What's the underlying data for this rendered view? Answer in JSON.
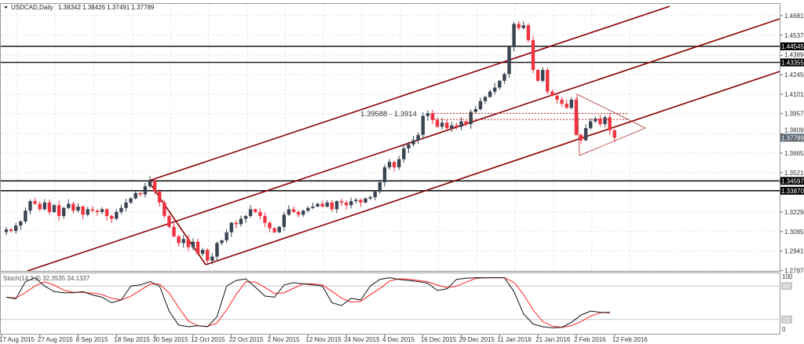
{
  "header": {
    "symbol": "USDCAD,Daily",
    "ohlc_text": "1.38342 1.38426 1.37491 1.37789",
    "menu_icon": "triangle-down-icon"
  },
  "colors": {
    "bull": "#3a4452",
    "bear": "#ef3340",
    "channel": "#8b0000",
    "level": "#1a1a1a",
    "stoch_main": "#111111",
    "stoch_signal": "#ff2020",
    "grid": "#e6e6e6"
  },
  "chart_data": {
    "type": "candlestick",
    "title": "USDCAD,Daily",
    "last_bar": {
      "open": 1.38342,
      "high": 1.38426,
      "low": 1.37491,
      "close": 1.37789
    },
    "closes": [
      1.3101,
      1.309,
      1.313,
      1.316,
      1.324,
      1.331,
      1.329,
      1.325,
      1.33,
      1.323,
      1.328,
      1.32,
      1.326,
      1.329,
      1.324,
      1.327,
      1.321,
      1.325,
      1.324,
      1.323,
      1.325,
      1.32,
      1.318,
      1.323,
      1.326,
      1.33,
      1.333,
      1.337,
      1.336,
      1.342,
      1.346,
      1.338,
      1.33,
      1.32,
      1.312,
      1.305,
      1.3,
      1.303,
      1.297,
      1.301,
      1.292,
      1.295,
      1.287,
      1.29,
      1.3,
      1.302,
      1.308,
      1.315,
      1.314,
      1.318,
      1.32,
      1.325,
      1.323,
      1.32,
      1.315,
      1.311,
      1.308,
      1.312,
      1.321,
      1.325,
      1.323,
      1.321,
      1.324,
      1.326,
      1.327,
      1.329,
      1.327,
      1.33,
      1.325,
      1.331,
      1.33,
      1.328,
      1.331,
      1.332,
      1.33,
      1.333,
      1.334,
      1.338,
      1.345,
      1.356,
      1.36,
      1.356,
      1.362,
      1.37,
      1.373,
      1.376,
      1.38,
      1.394,
      1.396,
      1.391,
      1.386,
      1.389,
      1.385,
      1.387,
      1.386,
      1.39,
      1.388,
      1.397,
      1.399,
      1.405,
      1.408,
      1.412,
      1.415,
      1.42,
      1.425,
      1.445,
      1.462,
      1.459,
      1.461,
      1.45,
      1.428,
      1.42,
      1.428,
      1.412,
      1.409,
      1.406,
      1.403,
      1.4,
      1.406,
      1.38,
      1.376,
      1.385,
      1.39,
      1.392,
      1.388,
      1.393,
      1.3834,
      1.37789
    ],
    "y_axis_ticks": [
      "1.46810",
      "1.45370",
      "1.43890",
      "1.42450",
      "1.41010",
      "1.39570",
      "1.38090",
      "1.36650",
      "1.35210",
      "1.32290",
      "1.30850",
      "1.29410",
      "1.27970"
    ],
    "ylim": [
      1.2797,
      1.4681
    ],
    "x_axis_ticks": [
      "17 Aug 2015",
      "27 Aug 2015",
      "8 Sep 2015",
      "18 Sep 2015",
      "30 Sep 2015",
      "12 Oct 2015",
      "22 Oct 2015",
      "2 Nov 2015",
      "12 Nov 2015",
      "24 Nov 2015",
      "4 Dec 2015",
      "16 Dec 2015",
      "29 Dec 2015",
      "11 Jan 2016",
      "21 Jan 2016",
      "2 Feb 2016",
      "12 Feb 2016"
    ],
    "horizontal_levels": [
      {
        "value": 1.44545,
        "label": "1.44545"
      },
      {
        "value": 1.43355,
        "label": "1.43355"
      },
      {
        "value": 1.34597,
        "label": "1.34597"
      },
      {
        "value": 1.3387,
        "label": "1.33870"
      }
    ],
    "current_price_label": "1.37789",
    "range_annotation": {
      "text": "1.39588  - 1.3914",
      "upper": 1.39588,
      "lower": 1.3914
    },
    "grid": true,
    "stochastic": {
      "label": "Stoch(14,3,3) 32.3535 34.1337",
      "main_last": 32.3535,
      "signal_last": 34.1337,
      "levels": [
        "80",
        "20"
      ],
      "scale": [
        "100",
        "0"
      ],
      "main_every_2_bars": [
        60,
        57,
        88,
        95,
        80,
        70,
        68,
        68,
        70,
        64,
        60,
        50,
        55,
        80,
        82,
        88,
        80,
        35,
        10,
        7,
        9,
        7,
        25,
        80,
        90,
        93,
        78,
        62,
        60,
        82,
        86,
        84,
        82,
        80,
        50,
        45,
        58,
        55,
        80,
        92,
        95,
        92,
        90,
        88,
        85,
        72,
        75,
        92,
        94,
        95,
        95,
        95,
        95,
        70,
        30,
        12,
        7,
        5,
        6,
        15,
        28,
        35,
        33,
        32
      ]
    }
  }
}
